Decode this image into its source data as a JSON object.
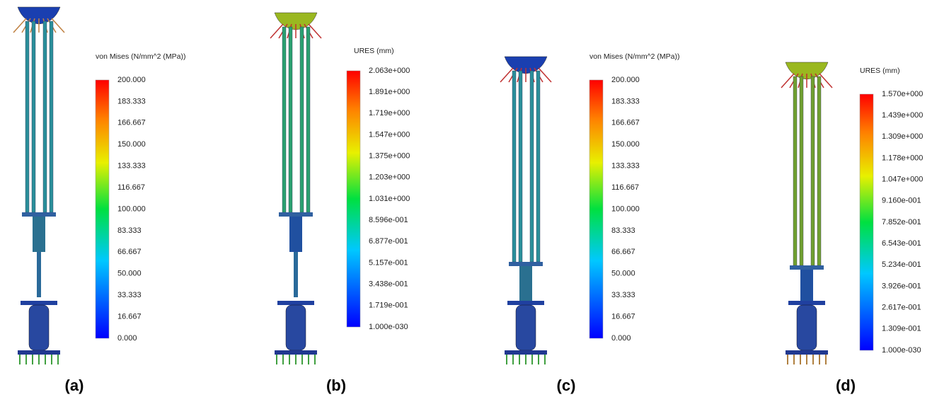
{
  "panels": [
    {
      "label": "(a)",
      "legend_title": "von Mises (N/mm^2 (MPa))",
      "ticks": [
        "200.000",
        "183.333",
        "166.667",
        "150.000",
        "133.333",
        "116.667",
        "100.000",
        "83.333",
        "66.667",
        "50.000",
        "33.333",
        "16.667",
        "0.000"
      ]
    },
    {
      "label": "(b)",
      "legend_title": "URES (mm)",
      "ticks": [
        "2.063e+000",
        "1.891e+000",
        "1.719e+000",
        "1.547e+000",
        "1.375e+000",
        "1.203e+000",
        "1.031e+000",
        "8.596e-001",
        "6.877e-001",
        "5.157e-001",
        "3.438e-001",
        "1.719e-001",
        "1.000e-030"
      ]
    },
    {
      "label": "(c)",
      "legend_title": "von Mises (N/mm^2 (MPa))",
      "ticks": [
        "200.000",
        "183.333",
        "166.667",
        "150.000",
        "133.333",
        "116.667",
        "100.000",
        "83.333",
        "66.667",
        "50.000",
        "33.333",
        "16.667",
        "0.000"
      ]
    },
    {
      "label": "(d)",
      "legend_title": "URES (mm)",
      "ticks": [
        "1.570e+000",
        "1.439e+000",
        "1.309e+000",
        "1.178e+000",
        "1.047e+000",
        "9.160e-001",
        "7.852e-001",
        "6.543e-001",
        "5.234e-001",
        "3.926e-001",
        "2.617e-001",
        "1.309e-001",
        "1.000e-030"
      ]
    }
  ]
}
